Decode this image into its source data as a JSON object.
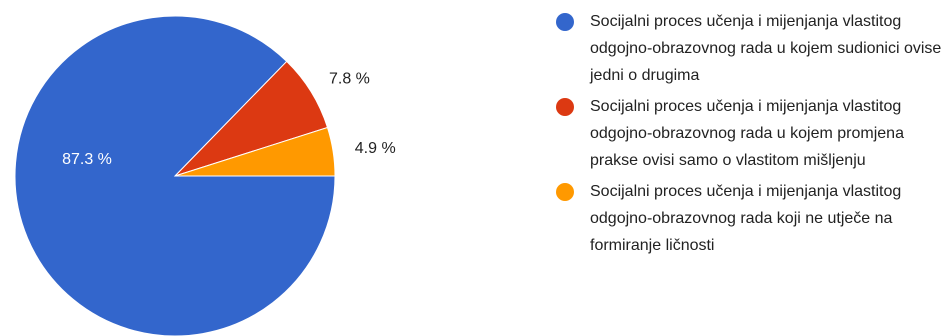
{
  "chart_data": {
    "type": "pie",
    "categories": [
      "Socijalni proces učenja i mijenjanja vlastitog odgojno-obrazovnog rada u kojem sudionici ovise jedni o drugima",
      "Socijalni proces učenja i mijenjanja vlastitog odgojno-obrazovnog rada u kojem promjena prakse ovisi samo o vlastitom mišljenju",
      "Socijalni proces učenja i mijenjanja vlastitog odgojno-obrazovnog rada koji ne utječe na formiranje ličnosti"
    ],
    "values": [
      87.3,
      7.8,
      4.9
    ],
    "labels": [
      "87.3 %",
      "7.8 %",
      "4.9 %"
    ],
    "colors": [
      "#3366cc",
      "#dc3912",
      "#ff9900"
    ],
    "legend_position": "right"
  }
}
